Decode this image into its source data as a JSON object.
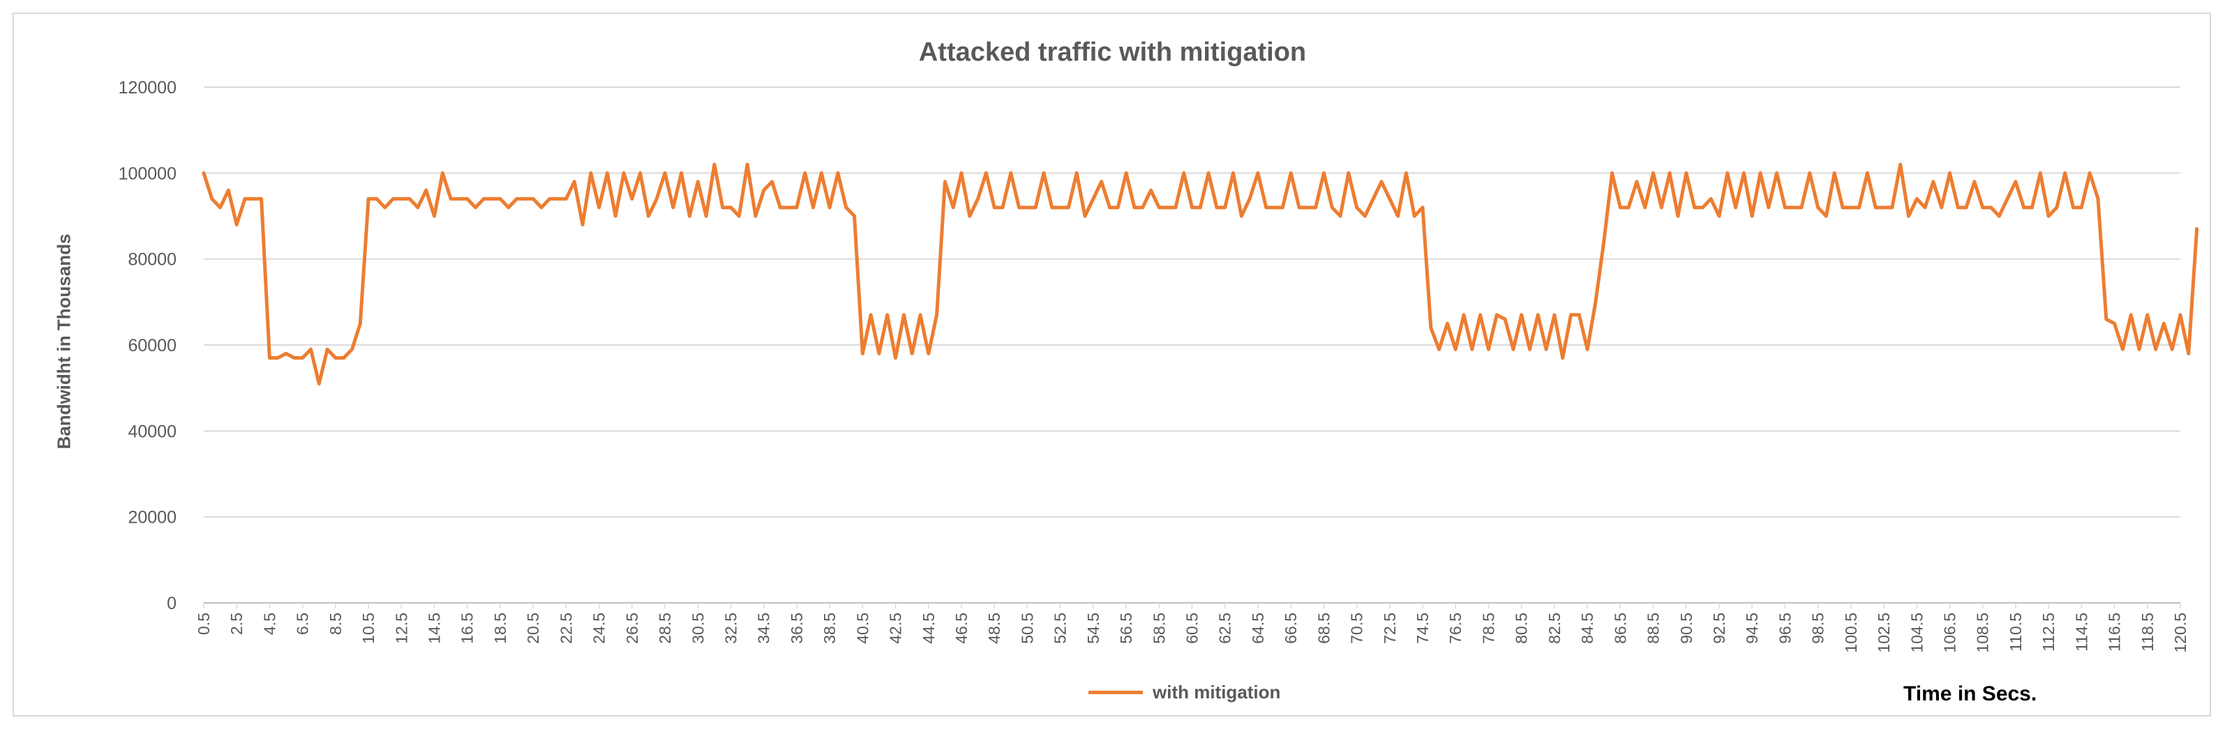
{
  "chart_data": {
    "type": "line",
    "title": "Attacked traffic with mitigation",
    "xlabel": "Time in Secs.",
    "ylabel": "Bandwidht in Thousands",
    "ylim": [
      0,
      120000
    ],
    "yticks": [
      0,
      20000,
      40000,
      60000,
      80000,
      100000,
      120000
    ],
    "xticks": [
      "0.5",
      "2.5",
      "4.5",
      "6.5",
      "8.5",
      "10.5",
      "12.5",
      "14.5",
      "16.5",
      "18.5",
      "20.5",
      "22.5",
      "24.5",
      "26.5",
      "28.5",
      "30.5",
      "32.5",
      "34.5",
      "36.5",
      "38.5",
      "40.5",
      "42.5",
      "44.5",
      "46.5",
      "48.5",
      "50.5",
      "52.5",
      "54.5",
      "56.5",
      "58.5",
      "60.5",
      "62.5",
      "64.5",
      "66.5",
      "68.5",
      "70.5",
      "72.5",
      "74.5",
      "76.5",
      "78.5",
      "80.5",
      "82.5",
      "84.5",
      "86.5",
      "88.5",
      "90.5",
      "92.5",
      "94.5",
      "96.5",
      "98.5",
      "100.5",
      "102.5",
      "104.5",
      "106.5",
      "108.5",
      "110.5",
      "112.5",
      "114.5",
      "116.5",
      "118.5",
      "120.5"
    ],
    "grid": true,
    "legend_position": "bottom",
    "series": [
      {
        "name": "with mitigation",
        "color": "#ed7d31",
        "x_start": 0.5,
        "x_step": 0.5,
        "values": [
          100000,
          94000,
          92000,
          96000,
          88000,
          94000,
          94000,
          94000,
          57000,
          57000,
          58000,
          57000,
          57000,
          59000,
          51000,
          59000,
          57000,
          57000,
          59000,
          65000,
          94000,
          94000,
          92000,
          94000,
          94000,
          94000,
          92000,
          96000,
          90000,
          100000,
          94000,
          94000,
          94000,
          92000,
          94000,
          94000,
          94000,
          92000,
          94000,
          94000,
          94000,
          92000,
          94000,
          94000,
          94000,
          98000,
          88000,
          100000,
          92000,
          100000,
          90000,
          100000,
          94000,
          100000,
          90000,
          94000,
          100000,
          92000,
          100000,
          90000,
          98000,
          90000,
          102000,
          92000,
          92000,
          90000,
          102000,
          90000,
          96000,
          98000,
          92000,
          92000,
          92000,
          100000,
          92000,
          100000,
          92000,
          100000,
          92000,
          90000,
          58000,
          67000,
          58000,
          67000,
          57000,
          67000,
          58000,
          67000,
          58000,
          67000,
          98000,
          92000,
          100000,
          90000,
          94000,
          100000,
          92000,
          92000,
          100000,
          92000,
          92000,
          92000,
          100000,
          92000,
          92000,
          92000,
          100000,
          90000,
          94000,
          98000,
          92000,
          92000,
          100000,
          92000,
          92000,
          96000,
          92000,
          92000,
          92000,
          100000,
          92000,
          92000,
          100000,
          92000,
          92000,
          100000,
          90000,
          94000,
          100000,
          92000,
          92000,
          92000,
          100000,
          92000,
          92000,
          92000,
          100000,
          92000,
          90000,
          100000,
          92000,
          90000,
          94000,
          98000,
          94000,
          90000,
          100000,
          90000,
          92000,
          64000,
          59000,
          65000,
          59000,
          67000,
          59000,
          67000,
          59000,
          67000,
          66000,
          59000,
          67000,
          59000,
          67000,
          59000,
          67000,
          57000,
          67000,
          67000,
          59000,
          70000,
          84000,
          100000,
          92000,
          92000,
          98000,
          92000,
          100000,
          92000,
          100000,
          90000,
          100000,
          92000,
          92000,
          94000,
          90000,
          100000,
          92000,
          100000,
          90000,
          100000,
          92000,
          100000,
          92000,
          92000,
          92000,
          100000,
          92000,
          90000,
          100000,
          92000,
          92000,
          92000,
          100000,
          92000,
          92000,
          92000,
          102000,
          90000,
          94000,
          92000,
          98000,
          92000,
          100000,
          92000,
          92000,
          98000,
          92000,
          92000,
          90000,
          94000,
          98000,
          92000,
          92000,
          100000,
          90000,
          92000,
          100000,
          92000,
          92000,
          100000,
          94000,
          66000,
          65000,
          59000,
          67000,
          59000,
          67000,
          59000,
          65000,
          59000,
          67000,
          58000,
          87000
        ]
      }
    ]
  }
}
